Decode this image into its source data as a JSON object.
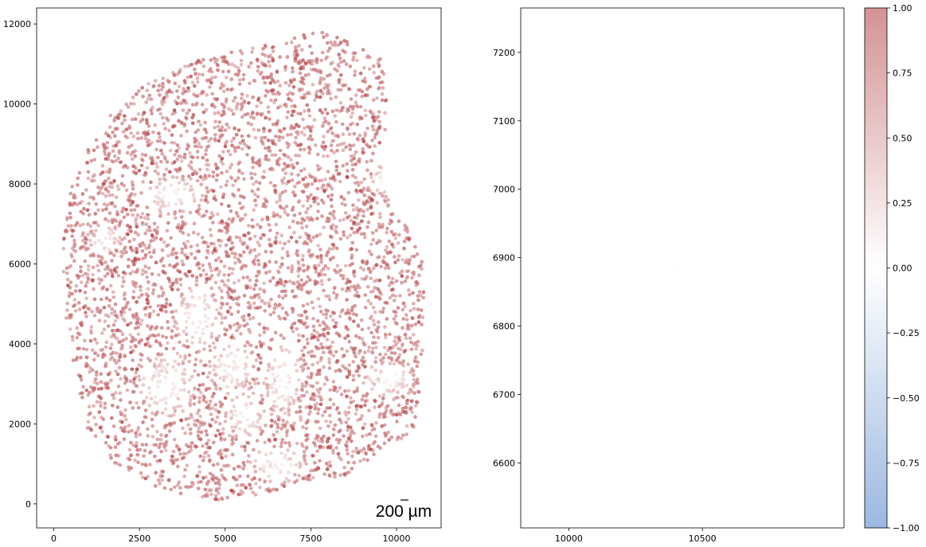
{
  "chart_data": [
    {
      "type": "scatter",
      "title": "",
      "xlabel": "",
      "ylabel": "",
      "xlim": [
        -500,
        11300
      ],
      "ylim": [
        -600,
        12400
      ],
      "xticks": [
        0,
        2500,
        5000,
        7500,
        10000
      ],
      "yticks": [
        0,
        2000,
        4000,
        6000,
        8000,
        10000,
        12000
      ],
      "xtick_labels": [
        "0",
        "2500",
        "5000",
        "7500",
        "10000"
      ],
      "ytick_labels": [
        "0",
        "2000",
        "4000",
        "6000",
        "8000",
        "10000",
        "12000"
      ],
      "grid": false,
      "point_color_by_value": true,
      "dominant_value": 0.9,
      "low_value_regions_note_values": [
        0.05,
        0.2
      ],
      "scale_bar": {
        "label": "200 µm",
        "position": "bottom-right"
      },
      "colormap": "vlag"
    },
    {
      "type": "scatter",
      "title": "",
      "xlabel": "",
      "ylabel": "",
      "xlim": [
        9820,
        11030
      ],
      "ylim": [
        6505,
        7265
      ],
      "xticks": [
        10000,
        10500
      ],
      "yticks": [
        6600,
        6700,
        6800,
        6900,
        7000,
        7100,
        7200
      ],
      "xtick_labels": [
        "10000",
        "10500"
      ],
      "ytick_labels": [
        "6600",
        "6700",
        "6800",
        "6900",
        "7000",
        "7100",
        "7200"
      ],
      "grid": false,
      "points": [
        {
          "x": 10410,
          "y": 6880,
          "value": 0.05
        }
      ]
    }
  ],
  "colorbar": {
    "min": -1.0,
    "max": 1.0,
    "ticks": [
      1.0,
      0.75,
      0.5,
      0.25,
      0.0,
      -0.25,
      -0.5,
      -0.75,
      -1.0
    ],
    "tick_labels": [
      "1.00",
      "0.75",
      "0.50",
      "0.25",
      "0.00",
      "−0.25",
      "−0.50",
      "−0.75",
      "−1.00"
    ],
    "colors": {
      "high": "#b03a3e",
      "mid": "#ffffff",
      "low": "#4a7ec8"
    },
    "alpha": 0.55,
    "position": "right"
  }
}
